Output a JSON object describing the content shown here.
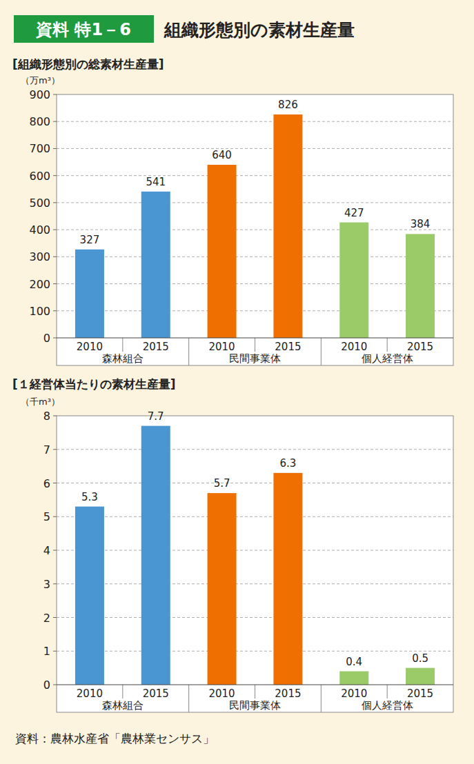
{
  "header": {
    "badge": "資料 特1－6",
    "title": "組織形態別の素材生産量"
  },
  "chart_data": [
    {
      "type": "bar",
      "title": "[組織形態別の総素材生産量]",
      "ylabel": "（万m³）",
      "categories": [
        "2010",
        "2015",
        "2010",
        "2015",
        "2010",
        "2015"
      ],
      "groups": [
        "森林組合",
        "民間事業体",
        "個人経営体"
      ],
      "values": [
        327,
        541,
        640,
        826,
        427,
        384
      ],
      "colors": [
        "#4a96d2",
        "#4a96d2",
        "#ef6f00",
        "#ef6f00",
        "#9bcb69",
        "#9bcb69"
      ],
      "ylim": [
        0,
        900
      ],
      "yticks": [
        0,
        100,
        200,
        300,
        400,
        500,
        600,
        700,
        800,
        900
      ],
      "grid": true,
      "data_labels": true
    },
    {
      "type": "bar",
      "title": "[１経営体当たりの素材生産量]",
      "ylabel": "（千m³）",
      "categories": [
        "2010",
        "2015",
        "2010",
        "2015",
        "2010",
        "2015"
      ],
      "groups": [
        "森林組合",
        "民間事業体",
        "個人経営体"
      ],
      "values": [
        5.3,
        7.7,
        5.7,
        6.3,
        0.4,
        0.5
      ],
      "colors": [
        "#4a96d2",
        "#4a96d2",
        "#ef6f00",
        "#ef6f00",
        "#9bcb69",
        "#9bcb69"
      ],
      "ylim": [
        0,
        8
      ],
      "yticks": [
        0,
        1,
        2,
        3,
        4,
        5,
        6,
        7,
        8
      ],
      "grid": true,
      "data_labels": true
    }
  ],
  "source": "資料：農林水産省「農林業センサス」"
}
